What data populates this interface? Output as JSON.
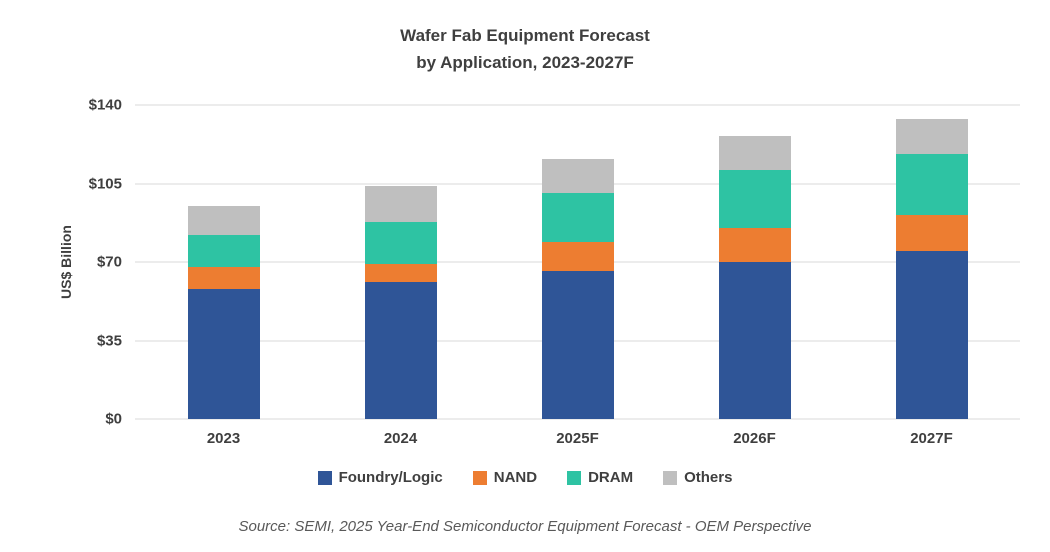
{
  "chart_data": {
    "type": "bar",
    "stacked": true,
    "title_line1": "Wafer Fab Equipment Forecast",
    "title_line2": "by Application, 2023-2027F",
    "ylabel": "US$ Billion",
    "categories": [
      "2023",
      "2024",
      "2025F",
      "2026F",
      "2027F"
    ],
    "series": [
      {
        "name": "Foundry/Logic",
        "color": "#2F5597",
        "values": [
          58,
          61,
          66,
          70,
          75
        ]
      },
      {
        "name": "NAND",
        "color": "#ED7D31",
        "values": [
          10,
          8,
          13,
          15,
          16
        ]
      },
      {
        "name": "DRAM",
        "color": "#2EC3A3",
        "values": [
          14,
          19,
          22,
          26,
          27
        ]
      },
      {
        "name": "Others",
        "color": "#BFBFBF",
        "values": [
          13,
          16,
          15,
          15,
          16
        ]
      }
    ],
    "totals": [
      95,
      104,
      116,
      126,
      134
    ],
    "ylim": [
      0,
      140
    ],
    "yticks": [
      0,
      35,
      70,
      105,
      140
    ],
    "ytick_labels": [
      "$0",
      "$35",
      "$70",
      "$105",
      "$140"
    ],
    "grid": true,
    "legend_position": "bottom",
    "gridline_color": "#D9D9D9",
    "text_color": "#3F3F3F",
    "source": "Source: SEMI, 2025 Year-End Semiconductor Equipment Forecast - OEM Perspective"
  }
}
